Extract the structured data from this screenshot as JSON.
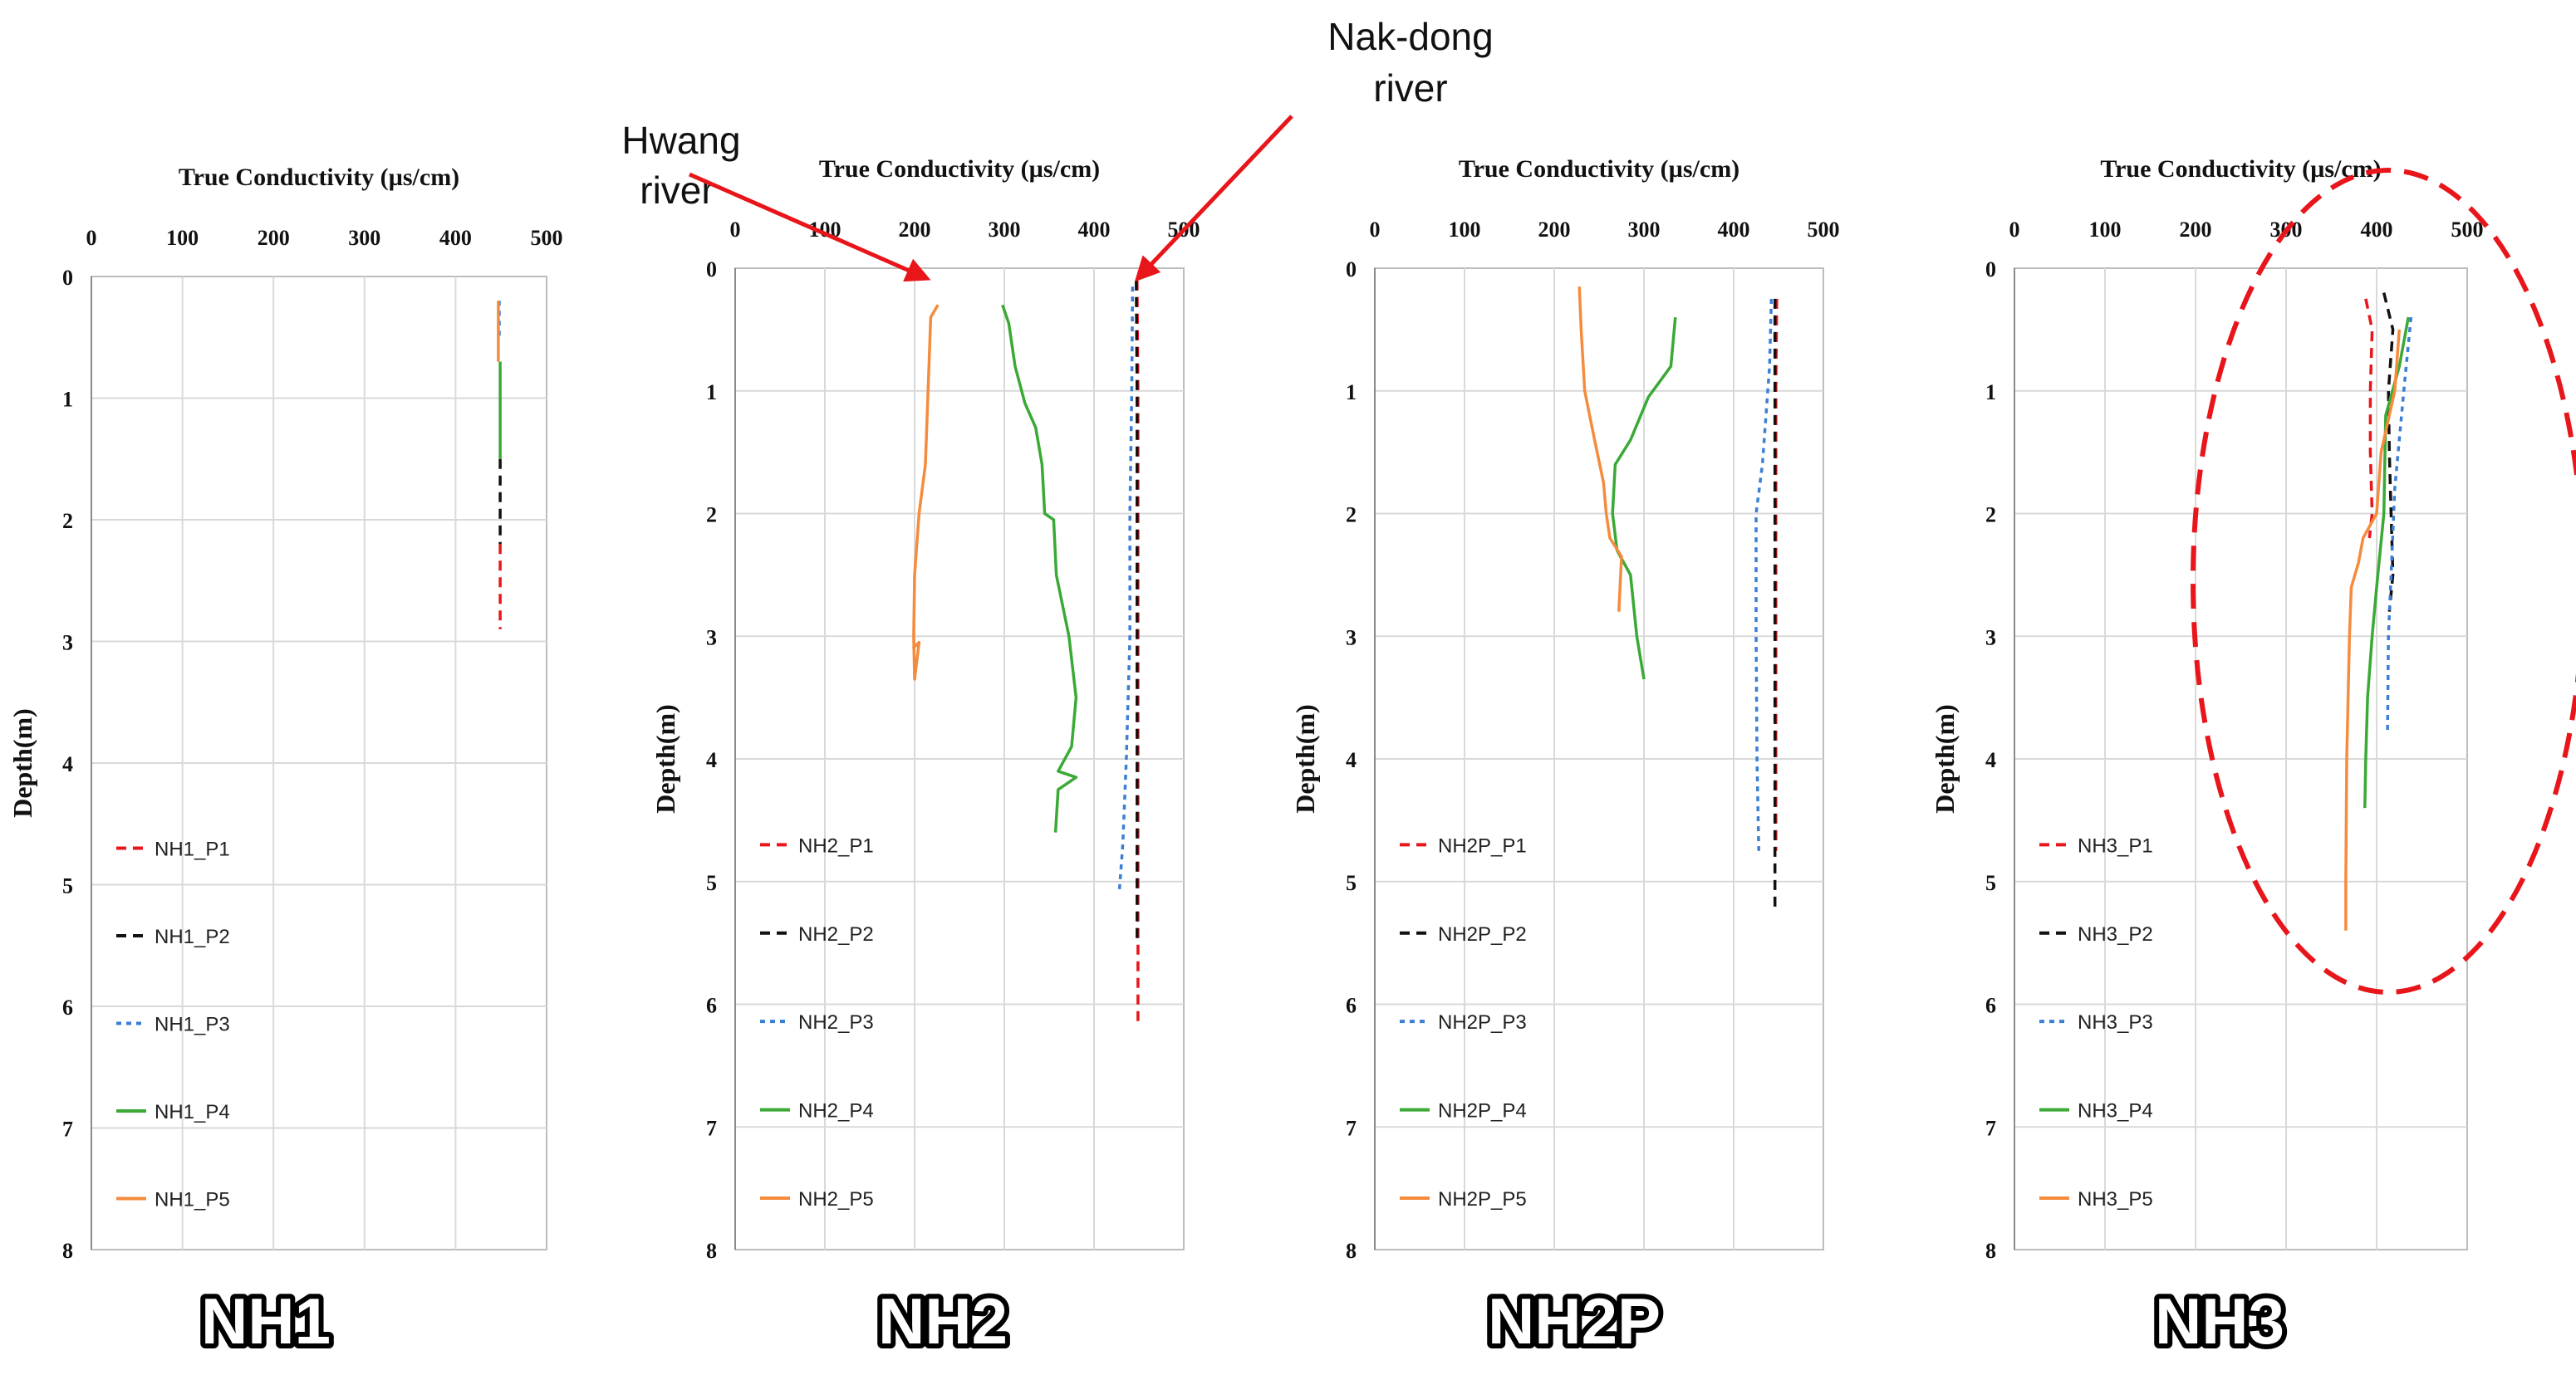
{
  "colors": {
    "p1": "#e8151b",
    "p2": "#111111",
    "p3": "#3b7fd4",
    "p4": "#3aa935",
    "p5": "#f58b3d",
    "arrow": "#e8151b",
    "ellipse": "#e8151b",
    "grid": "#d9d9d9"
  },
  "annotations": {
    "hwang_line1": "Hwang",
    "hwang_line2": "river",
    "nakdong_line1": "Nak-dong",
    "nakdong_line2": "river"
  },
  "chart_data": [
    {
      "type": "line",
      "panel_label": "NH1",
      "title": "True Conductivity (µs/cm)",
      "xlabel": "True Conductivity (µs/cm)",
      "ylabel": "Depth(m)",
      "xlim": [
        0,
        500
      ],
      "ylim": [
        0,
        8
      ],
      "xticks": [
        "0",
        "100",
        "200",
        "300",
        "400",
        "500"
      ],
      "yticks": [
        "0",
        "1",
        "2",
        "3",
        "4",
        "5",
        "6",
        "7",
        "8"
      ],
      "y_inverted": true,
      "x_axis_position": "top",
      "grid": true,
      "series": [
        {
          "name": "NH1_P1",
          "style": "p1",
          "points": [
            [
              449,
              2.2
            ],
            [
              449,
              2.5
            ],
            [
              449,
              2.9
            ]
          ]
        },
        {
          "name": "NH1_P2",
          "style": "p2",
          "points": [
            [
              449,
              1.5
            ],
            [
              449,
              1.9
            ],
            [
              449,
              2.2
            ]
          ]
        },
        {
          "name": "NH1_P3",
          "style": "p3",
          "points": [
            [
              448,
              0.2
            ],
            [
              448,
              0.5
            ]
          ]
        },
        {
          "name": "NH1_P4",
          "style": "p4",
          "points": [
            [
              449,
              0.7
            ],
            [
              449,
              1.1
            ],
            [
              449,
              1.5
            ]
          ]
        },
        {
          "name": "NH1_P5",
          "style": "p5",
          "points": [
            [
              447,
              0.2
            ],
            [
              447,
              0.45
            ],
            [
              447,
              0.7
            ]
          ]
        }
      ]
    },
    {
      "type": "line",
      "panel_label": "NH2",
      "title": "True Conductivity (µs/cm)",
      "xlabel": "True Conductivity (µs/cm)",
      "ylabel": "Depth(m)",
      "xlim": [
        0,
        500
      ],
      "ylim": [
        0,
        8
      ],
      "xticks": [
        "0",
        "100",
        "200",
        "300",
        "400",
        "500"
      ],
      "yticks": [
        "0",
        "1",
        "2",
        "3",
        "4",
        "5",
        "6",
        "7",
        "8"
      ],
      "y_inverted": true,
      "x_axis_position": "top",
      "grid": true,
      "series": [
        {
          "name": "NH2_P1",
          "style": "p1",
          "points": [
            [
              448,
              0.1
            ],
            [
              449,
              1
            ],
            [
              449,
              2
            ],
            [
              449,
              3
            ],
            [
              449,
              4
            ],
            [
              449,
              5
            ],
            [
              449,
              6.15
            ]
          ]
        },
        {
          "name": "NH2_P2",
          "style": "p2",
          "points": [
            [
              447,
              0.1
            ],
            [
              448,
              1
            ],
            [
              448,
              2
            ],
            [
              448,
              3
            ],
            [
              448,
              4
            ],
            [
              448,
              5
            ],
            [
              448,
              5.5
            ]
          ]
        },
        {
          "name": "NH2_P3",
          "style": "p3",
          "points": [
            [
              443,
              0.15
            ],
            [
              442,
              1
            ],
            [
              440,
              2
            ],
            [
              440,
              3
            ],
            [
              436,
              4
            ],
            [
              432,
              4.7
            ],
            [
              428,
              5.1
            ]
          ]
        },
        {
          "name": "NH2_P4",
          "style": "p4",
          "points": [
            [
              298,
              0.3
            ],
            [
              305,
              0.45
            ],
            [
              312,
              0.8
            ],
            [
              323,
              1.1
            ],
            [
              335,
              1.3
            ],
            [
              342,
              1.6
            ],
            [
              345,
              2
            ],
            [
              355,
              2.05
            ],
            [
              358,
              2.5
            ],
            [
              372,
              3
            ],
            [
              380,
              3.5
            ],
            [
              375,
              3.9
            ],
            [
              360,
              4.1
            ],
            [
              380,
              4.15
            ],
            [
              360,
              4.25
            ],
            [
              357,
              4.6
            ]
          ]
        },
        {
          "name": "NH2_P5",
          "style": "p5",
          "points": [
            [
              226,
              0.3
            ],
            [
              218,
              0.4
            ],
            [
              215,
              1
            ],
            [
              212,
              1.6
            ],
            [
              205,
              2
            ],
            [
              200,
              2.5
            ],
            [
              199,
              3
            ],
            [
              200,
              3.35
            ],
            [
              205,
              3.05
            ],
            [
              198,
              3.1
            ]
          ]
        }
      ]
    },
    {
      "type": "line",
      "panel_label": "NH2P",
      "title": "True Conductivity (µs/cm)",
      "xlabel": "True Conductivity (µs/cm)",
      "ylabel": "Depth(m)",
      "xlim": [
        0,
        500
      ],
      "ylim": [
        0,
        8
      ],
      "xticks": [
        "0",
        "100",
        "200",
        "300",
        "400",
        "500"
      ],
      "yticks": [
        "0",
        "1",
        "2",
        "3",
        "4",
        "5",
        "6",
        "7",
        "8"
      ],
      "y_inverted": true,
      "x_axis_position": "top",
      "grid": true,
      "series": [
        {
          "name": "NH2P_P1",
          "style": "p1",
          "points": [
            [
              448,
              0.25
            ],
            [
              447,
              1
            ],
            [
              447,
              2
            ],
            [
              447,
              3
            ],
            [
              447,
              4
            ],
            [
              447,
              4.75
            ]
          ]
        },
        {
          "name": "NH2P_P2",
          "style": "p2",
          "points": [
            [
              446,
              0.25
            ],
            [
              446,
              1
            ],
            [
              446,
              2
            ],
            [
              446,
              3
            ],
            [
              446,
              4
            ],
            [
              446,
              5.25
            ]
          ]
        },
        {
          "name": "NH2P_P3",
          "style": "p3",
          "points": [
            [
              442,
              0.25
            ],
            [
              440,
              0.8
            ],
            [
              432,
              1.6
            ],
            [
              425,
              2
            ],
            [
              425,
              3
            ],
            [
              426,
              4
            ],
            [
              428,
              4.75
            ]
          ]
        },
        {
          "name": "NH2P_P4",
          "style": "p4",
          "points": [
            [
              335,
              0.4
            ],
            [
              330,
              0.8
            ],
            [
              305,
              1.05
            ],
            [
              285,
              1.4
            ],
            [
              268,
              1.6
            ],
            [
              265,
              2
            ],
            [
              270,
              2.3
            ],
            [
              285,
              2.5
            ],
            [
              292,
              3
            ],
            [
              300,
              3.35
            ]
          ]
        },
        {
          "name": "NH2P_P5",
          "style": "p5",
          "points": [
            [
              228,
              0.15
            ],
            [
              230,
              0.5
            ],
            [
              234,
              1
            ],
            [
              245,
              1.4
            ],
            [
              255,
              1.75
            ],
            [
              258,
              2
            ],
            [
              262,
              2.2
            ],
            [
              275,
              2.35
            ],
            [
              272,
              2.8
            ]
          ]
        }
      ]
    },
    {
      "type": "line",
      "panel_label": "NH3",
      "title": "True Conductivity (µs/cm)",
      "xlabel": "True Conductivity (µs/cm)",
      "ylabel": "Depth(m)",
      "xlim": [
        0,
        500
      ],
      "ylim": [
        0,
        8
      ],
      "xticks": [
        "0",
        "100",
        "200",
        "300",
        "400",
        "500"
      ],
      "yticks": [
        "0",
        "1",
        "2",
        "3",
        "4",
        "5",
        "6",
        "7",
        "8"
      ],
      "y_inverted": true,
      "x_axis_position": "top",
      "grid": true,
      "series": [
        {
          "name": "NH3_P1",
          "style": "p1",
          "points": [
            [
              388,
              0.25
            ],
            [
              395,
              0.5
            ],
            [
              393,
              1
            ],
            [
              393,
              1.5
            ],
            [
              395,
              2
            ],
            [
              392,
              2.2
            ]
          ]
        },
        {
          "name": "NH3_P2",
          "style": "p2",
          "points": [
            [
              408,
              0.2
            ],
            [
              418,
              0.5
            ],
            [
              413,
              1
            ],
            [
              414,
              1.5
            ],
            [
              416,
              2
            ],
            [
              418,
              2.5
            ],
            [
              414,
              2.8
            ]
          ]
        },
        {
          "name": "NH3_P3",
          "style": "p3",
          "points": [
            [
              438,
              0.4
            ],
            [
              430,
              1
            ],
            [
              420,
              1.8
            ],
            [
              416,
              2.5
            ],
            [
              413,
              3
            ],
            [
              412,
              3.8
            ]
          ]
        },
        {
          "name": "NH3_P4",
          "style": "p4",
          "points": [
            [
              435,
              0.4
            ],
            [
              425,
              0.8
            ],
            [
              410,
              1.2
            ],
            [
              408,
              2
            ],
            [
              400,
              2.6
            ],
            [
              395,
              3
            ],
            [
              390,
              3.5
            ],
            [
              388,
              4
            ],
            [
              387,
              4.4
            ]
          ]
        },
        {
          "name": "NH3_P5",
          "style": "p5",
          "points": [
            [
              425,
              0.5
            ],
            [
              420,
              1
            ],
            [
              405,
              1.5
            ],
            [
              400,
              2
            ],
            [
              385,
              2.2
            ],
            [
              380,
              2.4
            ],
            [
              372,
              2.6
            ],
            [
              370,
              3
            ],
            [
              367,
              4
            ],
            [
              366,
              5
            ],
            [
              366,
              5.4
            ]
          ]
        }
      ]
    }
  ]
}
